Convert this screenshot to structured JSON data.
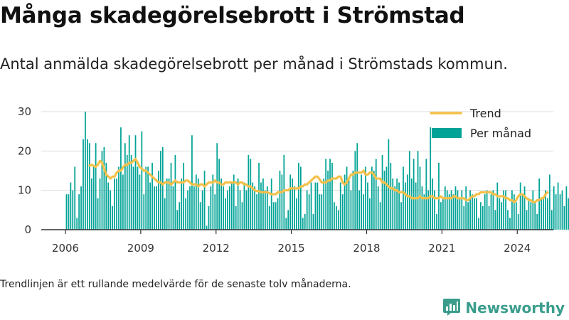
{
  "title": "Många skadegörelsebrott i Strömstad",
  "subtitle": "Antal anmälda skadegörelsebrott per månad i Strömstads kommun.",
  "footnote": "Trendlinjen är ett rullande medelvärde för de senaste tolv månaderna.",
  "brand": {
    "name": "Newsworthy",
    "icon": "bar-chart-logo-icon"
  },
  "colors": {
    "bars": "#00a396",
    "trend": "#f5c04a",
    "grid": "#dddddd",
    "axis": "#333333",
    "brand": "#3a9d8c"
  },
  "chart_data": {
    "type": "bar",
    "legend": {
      "position": "top-right",
      "trend_label": "Trend",
      "bars_label": "Per månad"
    },
    "x_start": "2006-01",
    "xticks": [
      "2006",
      "2009",
      "2012",
      "2015",
      "2018",
      "2021",
      "2024"
    ],
    "yticks": [
      0,
      10,
      20,
      30
    ],
    "ylim": [
      0,
      30
    ],
    "grid": true,
    "series": [
      {
        "name": "Per månad",
        "type": "bar",
        "values": [
          9,
          9,
          12,
          10,
          16,
          3,
          9,
          11,
          23,
          30,
          23,
          22,
          13,
          16,
          22,
          8,
          13,
          20,
          21,
          17,
          12,
          10,
          6,
          13,
          13,
          16,
          26,
          14,
          22,
          19,
          24,
          19,
          16,
          24,
          16,
          14,
          25,
          9,
          16,
          16,
          12,
          17,
          11,
          11,
          15,
          20,
          21,
          8,
          13,
          13,
          17,
          11,
          19,
          5,
          7,
          13,
          17,
          8,
          10,
          11,
          24,
          11,
          14,
          13,
          7,
          10,
          15,
          1,
          6,
          11,
          14,
          9,
          22,
          18,
          13,
          11,
          8,
          10,
          11,
          12,
          14,
          6,
          13,
          10,
          7,
          12,
          10,
          19,
          18,
          12,
          11,
          9,
          17,
          12,
          13,
          10,
          11,
          6,
          13,
          7,
          7,
          8,
          15,
          14,
          19,
          3,
          5,
          14,
          13,
          11,
          8,
          17,
          16,
          3,
          4,
          10,
          9,
          12,
          4,
          12,
          12,
          9,
          9,
          13,
          18,
          15,
          18,
          17,
          7,
          6,
          5,
          12,
          9,
          14,
          16,
          13,
          10,
          15,
          20,
          22,
          10,
          14,
          9,
          16,
          12,
          8,
          16,
          15,
          18,
          11,
          7,
          19,
          15,
          16,
          23,
          17,
          13,
          11,
          13,
          12,
          7,
          16,
          12,
          14,
          20,
          13,
          18,
          12,
          20,
          16,
          11,
          9,
          18,
          10,
          26,
          13,
          10,
          4,
          17,
          7,
          8,
          11,
          10,
          9,
          10,
          9,
          11,
          10,
          8,
          10,
          6,
          11,
          7,
          10,
          9,
          8,
          8,
          3,
          7,
          6,
          9,
          10,
          6,
          9,
          10,
          5,
          12,
          8,
          7,
          10,
          10,
          5,
          3,
          10,
          9,
          7,
          4,
          12,
          9,
          11,
          5,
          8,
          7,
          10,
          7,
          4,
          13,
          8,
          8,
          10,
          8,
          14,
          5,
          11,
          9,
          12,
          9,
          10,
          6,
          11,
          8,
          14,
          11,
          7,
          10,
          4,
          9,
          11,
          7,
          5,
          13,
          8,
          7,
          14,
          10,
          6,
          11,
          4,
          9,
          6,
          5,
          8,
          13,
          6,
          12,
          4,
          3,
          5,
          9,
          11,
          5,
          7,
          3,
          4,
          2,
          8,
          13,
          4,
          21,
          22
        ]
      },
      {
        "name": "Trend",
        "type": "line",
        "start": "2006-12",
        "values": [
          16.3,
          16.5,
          16.2,
          16,
          16.5,
          17.5,
          17,
          15.5,
          14,
          13.5,
          13,
          13.5,
          13.5,
          14.5,
          15,
          15,
          15.8,
          16.5,
          16.5,
          17,
          17,
          17.5,
          18,
          17,
          16,
          15.5,
          15,
          15,
          14.5,
          14,
          13.5,
          13,
          12.5,
          12,
          12,
          11.5,
          12,
          12,
          12,
          11.5,
          12,
          12.5,
          12,
          12,
          12,
          12,
          12.5,
          12.5,
          12,
          11.5,
          11.5,
          11.5,
          11,
          11.5,
          11.5,
          11,
          11.5,
          12,
          12,
          12,
          12.5,
          12,
          12,
          11.5,
          11.5,
          12,
          12,
          12,
          12,
          12,
          12,
          11.5,
          12,
          12,
          11.5,
          11.5,
          11,
          11,
          10.5,
          10,
          9.8,
          9.8,
          9.5,
          9.5,
          9.5,
          9.5,
          9.3,
          9,
          9,
          9,
          9.5,
          9.5,
          9.5,
          10,
          10,
          10,
          10.5,
          10.5,
          10.5,
          10.5,
          10.5,
          11,
          11,
          11.5,
          11.5,
          12,
          12.5,
          13,
          13.5,
          13.5,
          12.8,
          12,
          12,
          12,
          12.5,
          12.5,
          13,
          13,
          13,
          13.5,
          13.5,
          12,
          11.5,
          12,
          13,
          14,
          14,
          14.5,
          14.5,
          14.5,
          14.5,
          15,
          14,
          14,
          14.5,
          14.5,
          14,
          13,
          13,
          13,
          12,
          12,
          11.5,
          11,
          10.5,
          10.5,
          10,
          10,
          9.5,
          9.5,
          9.5,
          9,
          8.5,
          8.5,
          8,
          8,
          8,
          8,
          8.5,
          8,
          8,
          8,
          8,
          8.5,
          8.5,
          8,
          8,
          8,
          8.5,
          8,
          8,
          8,
          8,
          8,
          8.5,
          8.5,
          8,
          8,
          8,
          8,
          7.5,
          7.5,
          8,
          8.5,
          8.5,
          9,
          9,
          9.5,
          9.5,
          9.5,
          9.5,
          9.5,
          9.5,
          9,
          9,
          8.5,
          8.5,
          8.5,
          8.5,
          8,
          8,
          7.5,
          7.5,
          7,
          7.5,
          8.5,
          9,
          9,
          8.5,
          8,
          7.5,
          7.5,
          7,
          7,
          7.5,
          7.5,
          8,
          8,
          9,
          9.5
        ]
      }
    ]
  }
}
